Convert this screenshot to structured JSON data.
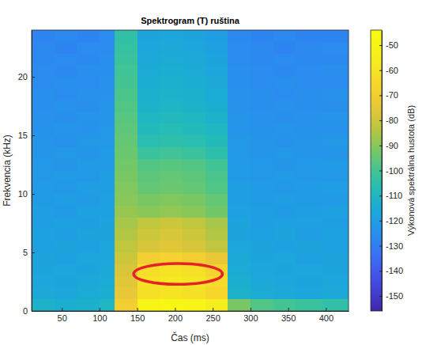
{
  "chart_data": {
    "type": "heatmap",
    "title": "Spektrogram (T) ruština",
    "x_label": "Čas (ms)",
    "y_label": "Frekvencia (kHz)",
    "xlim": [
      10,
      430
    ],
    "ylim": [
      0,
      24
    ],
    "xticks": [
      50,
      100,
      150,
      200,
      250,
      300,
      350,
      400
    ],
    "yticks": [
      0,
      5,
      10,
      15,
      20
    ],
    "x_edges": [
      10,
      40,
      70,
      100,
      120,
      150,
      180,
      210,
      240,
      270,
      300,
      330,
      360,
      395,
      430
    ],
    "y_edges": [
      0,
      1,
      2,
      3,
      4,
      5,
      6,
      7,
      8,
      9,
      10,
      11,
      12,
      13,
      14,
      15,
      16,
      17,
      18,
      19,
      20,
      21,
      22,
      23,
      24
    ],
    "z": [
      [
        -112,
        -114,
        -113,
        -110,
        -70,
        -50,
        -48,
        -50,
        -55,
        -92,
        -98,
        -100,
        -102,
        -104
      ],
      [
        -116,
        -117,
        -115,
        -114,
        -74,
        -62,
        -60,
        -62,
        -66,
        -112,
        -115,
        -116,
        -117,
        -116
      ],
      [
        -117,
        -118,
        -116,
        -115,
        -76,
        -60,
        -57,
        -59,
        -64,
        -114,
        -116,
        -117,
        -118,
        -117
      ],
      [
        -118,
        -117,
        -118,
        -116,
        -78,
        -63,
        -60,
        -62,
        -67,
        -115,
        -117,
        -118,
        -117,
        -118
      ],
      [
        -118,
        -119,
        -117,
        -117,
        -80,
        -70,
        -68,
        -70,
        -74,
        -116,
        -118,
        -117,
        -119,
        -118
      ],
      [
        -119,
        -118,
        -119,
        -117,
        -82,
        -78,
        -76,
        -78,
        -82,
        -117,
        -118,
        -119,
        -118,
        -119
      ],
      [
        -119,
        -120,
        -118,
        -118,
        -84,
        -80,
        -78,
        -80,
        -84,
        -118,
        -119,
        -118,
        -120,
        -119
      ],
      [
        -120,
        -119,
        -120,
        -118,
        -86,
        -82,
        -80,
        -82,
        -86,
        -118,
        -120,
        -119,
        -119,
        -120
      ],
      [
        -120,
        -121,
        -119,
        -119,
        -88,
        -90,
        -89,
        -90,
        -93,
        -119,
        -120,
        -121,
        -120,
        -119
      ],
      [
        -121,
        -120,
        -121,
        -119,
        -90,
        -92,
        -91,
        -92,
        -95,
        -120,
        -121,
        -120,
        -121,
        -121
      ],
      [
        -121,
        -122,
        -120,
        -120,
        -91,
        -95,
        -94,
        -95,
        -98,
        -120,
        -121,
        -122,
        -121,
        -120
      ],
      [
        -122,
        -121,
        -122,
        -120,
        -92,
        -96,
        -95,
        -96,
        -99,
        -121,
        -122,
        -121,
        -122,
        -122
      ],
      [
        -122,
        -123,
        -121,
        -121,
        -93,
        -98,
        -97,
        -98,
        -101,
        -121,
        -122,
        -123,
        -122,
        -121
      ],
      [
        -123,
        -122,
        -123,
        -121,
        -94,
        -102,
        -101,
        -102,
        -105,
        -122,
        -123,
        -122,
        -123,
        -123
      ],
      [
        -123,
        -124,
        -122,
        -122,
        -95,
        -106,
        -105,
        -106,
        -108,
        -122,
        -123,
        -124,
        -123,
        -122
      ],
      [
        -124,
        -123,
        -124,
        -122,
        -96,
        -108,
        -107,
        -108,
        -110,
        -123,
        -124,
        -123,
        -124,
        -124
      ],
      [
        -124,
        -125,
        -123,
        -123,
        -97,
        -110,
        -109,
        -110,
        -112,
        -123,
        -124,
        -125,
        -124,
        -123
      ],
      [
        -125,
        -124,
        -125,
        -123,
        -98,
        -112,
        -111,
        -112,
        -114,
        -124,
        -125,
        -124,
        -125,
        -125
      ],
      [
        -125,
        -126,
        -124,
        -124,
        -99,
        -113,
        -112,
        -113,
        -115,
        -124,
        -125,
        -126,
        -125,
        -124
      ],
      [
        -126,
        -125,
        -126,
        -124,
        -100,
        -114,
        -113,
        -114,
        -116,
        -125,
        -126,
        -125,
        -126,
        -126
      ],
      [
        -126,
        -127,
        -125,
        -125,
        -101,
        -115,
        -114,
        -115,
        -117,
        -125,
        -126,
        -127,
        -126,
        -125
      ],
      [
        -127,
        -126,
        -127,
        -125,
        -102,
        -116,
        -115,
        -116,
        -118,
        -126,
        -127,
        -126,
        -127,
        -127
      ],
      [
        -127,
        -128,
        -126,
        -126,
        -103,
        -117,
        -116,
        -117,
        -119,
        -126,
        -127,
        -128,
        -127,
        -126
      ],
      [
        -128,
        -127,
        -128,
        -126,
        -104,
        -118,
        -117,
        -118,
        -120,
        -127,
        -128,
        -127,
        -128,
        -128
      ]
    ],
    "colorbar_label": "Výkonová spektrálna hustota (dB)",
    "clim": [
      -156,
      -44
    ],
    "cticks": [
      -150,
      -140,
      -130,
      -120,
      -110,
      -100,
      -90,
      -80,
      -70,
      -60,
      -50
    ]
  }
}
